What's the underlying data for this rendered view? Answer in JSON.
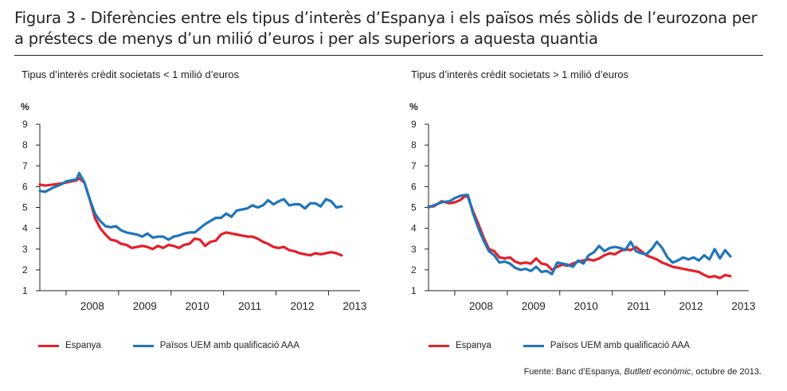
{
  "figure": {
    "title": "Figura 3 - Diferències entre els tipus d’interès d’Espanya i els països més sòlids de l’eurozona per a préstecs de menys d’un milió d’euros i per als superiors a aquesta quantia",
    "source_prefix": "Fuente: Banc d’Espanya, ",
    "source_italic": "Butlletí econòmic",
    "source_suffix": ", octubre de 2013."
  },
  "colors": {
    "spain": "#e3202a",
    "aaa": "#1f75b9",
    "axis": "#231f20"
  },
  "legend": {
    "spain": "Espanya",
    "aaa": "Països UEM amb qualificació AAA"
  },
  "chart_data": [
    {
      "type": "line",
      "title": "Tipus d’interès crèdit societats < 1 milió d’euros",
      "ylabel": "%",
      "ylim": [
        1,
        9
      ],
      "yticks": [
        1,
        2,
        3,
        4,
        5,
        6,
        7,
        8,
        9
      ],
      "xlim": [
        2007.5,
        2013.6
      ],
      "year_labels": [
        "2008",
        "2009",
        "2010",
        "2011",
        "2012",
        "2013"
      ],
      "legend_position": "bottom",
      "grid": false,
      "series": [
        {
          "name": "Espanya",
          "key": "spain",
          "x": [
            2007.5,
            2007.6,
            2007.75,
            2007.9,
            2008.0,
            2008.1,
            2008.2,
            2008.25,
            2008.35,
            2008.45,
            2008.55,
            2008.65,
            2008.75,
            2008.85,
            2008.95,
            2009.05,
            2009.15,
            2009.25,
            2009.35,
            2009.45,
            2009.55,
            2009.65,
            2009.75,
            2009.85,
            2009.95,
            2010.05,
            2010.15,
            2010.25,
            2010.35,
            2010.45,
            2010.55,
            2010.65,
            2010.75,
            2010.85,
            2010.95,
            2011.05,
            2011.15,
            2011.25,
            2011.35,
            2011.45,
            2011.55,
            2011.65,
            2011.75,
            2011.85,
            2011.95,
            2012.05,
            2012.15,
            2012.25,
            2012.35,
            2012.45,
            2012.55,
            2012.65,
            2012.75,
            2012.85,
            2012.95,
            2013.05,
            2013.15,
            2013.25
          ],
          "y": [
            6.1,
            6.05,
            6.1,
            6.15,
            6.2,
            6.25,
            6.3,
            6.4,
            6.2,
            5.4,
            4.5,
            4.0,
            3.7,
            3.45,
            3.4,
            3.25,
            3.2,
            3.05,
            3.1,
            3.15,
            3.1,
            3.0,
            3.15,
            3.05,
            3.2,
            3.15,
            3.05,
            3.2,
            3.25,
            3.5,
            3.45,
            3.15,
            3.35,
            3.4,
            3.7,
            3.8,
            3.75,
            3.7,
            3.65,
            3.6,
            3.6,
            3.5,
            3.35,
            3.25,
            3.1,
            3.05,
            3.1,
            2.95,
            2.9,
            2.8,
            2.75,
            2.7,
            2.8,
            2.75,
            2.8,
            2.85,
            2.8,
            2.7
          ]
        },
        {
          "name": "Països UEM amb qualificació AAA",
          "key": "aaa",
          "x": [
            2007.5,
            2007.6,
            2007.75,
            2007.9,
            2008.0,
            2008.1,
            2008.2,
            2008.25,
            2008.35,
            2008.45,
            2008.55,
            2008.65,
            2008.75,
            2008.85,
            2008.95,
            2009.05,
            2009.15,
            2009.25,
            2009.35,
            2009.45,
            2009.55,
            2009.65,
            2009.75,
            2009.85,
            2009.95,
            2010.05,
            2010.15,
            2010.25,
            2010.35,
            2010.45,
            2010.55,
            2010.65,
            2010.75,
            2010.85,
            2010.95,
            2011.05,
            2011.15,
            2011.25,
            2011.35,
            2011.45,
            2011.55,
            2011.65,
            2011.75,
            2011.85,
            2011.95,
            2012.05,
            2012.15,
            2012.25,
            2012.35,
            2012.45,
            2012.55,
            2012.65,
            2012.75,
            2012.85,
            2012.95,
            2013.05,
            2013.15,
            2013.25
          ],
          "y": [
            5.8,
            5.75,
            5.95,
            6.1,
            6.25,
            6.3,
            6.35,
            6.65,
            6.2,
            5.4,
            4.7,
            4.35,
            4.1,
            4.05,
            4.1,
            3.9,
            3.8,
            3.75,
            3.7,
            3.6,
            3.75,
            3.55,
            3.6,
            3.6,
            3.45,
            3.6,
            3.65,
            3.75,
            3.8,
            3.8,
            4.0,
            4.2,
            4.35,
            4.5,
            4.5,
            4.7,
            4.55,
            4.85,
            4.9,
            4.95,
            5.1,
            5.0,
            5.1,
            5.35,
            5.15,
            5.3,
            5.4,
            5.1,
            5.15,
            5.15,
            4.95,
            5.2,
            5.2,
            5.05,
            5.4,
            5.3,
            5.0,
            5.05
          ]
        }
      ]
    },
    {
      "type": "line",
      "title": "Tipus d’interès crèdit societats > 1 milió d’euros",
      "ylabel": "%",
      "ylim": [
        1,
        9
      ],
      "yticks": [
        1,
        2,
        3,
        4,
        5,
        6,
        7,
        8,
        9
      ],
      "xlim": [
        2007.5,
        2013.6
      ],
      "year_labels": [
        "2008",
        "2009",
        "2010",
        "2011",
        "2012",
        "2013"
      ],
      "legend_position": "bottom",
      "grid": false,
      "series": [
        {
          "name": "Espanya",
          "key": "spain",
          "x": [
            2007.5,
            2007.6,
            2007.75,
            2007.9,
            2008.0,
            2008.1,
            2008.2,
            2008.25,
            2008.35,
            2008.45,
            2008.55,
            2008.65,
            2008.75,
            2008.85,
            2008.95,
            2009.05,
            2009.15,
            2009.25,
            2009.35,
            2009.45,
            2009.55,
            2009.65,
            2009.75,
            2009.85,
            2009.95,
            2010.05,
            2010.15,
            2010.25,
            2010.35,
            2010.45,
            2010.55,
            2010.65,
            2010.75,
            2010.85,
            2010.95,
            2011.05,
            2011.15,
            2011.25,
            2011.35,
            2011.45,
            2011.55,
            2011.65,
            2011.75,
            2011.85,
            2011.95,
            2012.05,
            2012.15,
            2012.25,
            2012.35,
            2012.45,
            2012.55,
            2012.65,
            2012.75,
            2012.85,
            2012.95,
            2013.05,
            2013.15,
            2013.25
          ],
          "y": [
            5.05,
            5.05,
            5.3,
            5.2,
            5.25,
            5.35,
            5.55,
            5.5,
            4.8,
            4.2,
            3.55,
            3.0,
            2.9,
            2.6,
            2.55,
            2.6,
            2.4,
            2.3,
            2.35,
            2.3,
            2.55,
            2.3,
            2.25,
            2.0,
            2.15,
            2.25,
            2.2,
            2.3,
            2.4,
            2.45,
            2.5,
            2.45,
            2.55,
            2.7,
            2.8,
            2.75,
            2.9,
            3.0,
            2.95,
            3.1,
            2.9,
            2.7,
            2.6,
            2.5,
            2.35,
            2.25,
            2.15,
            2.1,
            2.05,
            2.0,
            1.95,
            1.9,
            1.75,
            1.65,
            1.7,
            1.6,
            1.75,
            1.7
          ]
        },
        {
          "name": "Països UEM amb qualificació AAA",
          "key": "aaa",
          "x": [
            2007.5,
            2007.6,
            2007.75,
            2007.9,
            2008.0,
            2008.1,
            2008.2,
            2008.25,
            2008.35,
            2008.45,
            2008.55,
            2008.65,
            2008.75,
            2008.85,
            2008.95,
            2009.05,
            2009.15,
            2009.25,
            2009.35,
            2009.45,
            2009.55,
            2009.65,
            2009.75,
            2009.85,
            2009.95,
            2010.05,
            2010.15,
            2010.25,
            2010.35,
            2010.45,
            2010.55,
            2010.65,
            2010.75,
            2010.85,
            2010.95,
            2011.05,
            2011.15,
            2011.25,
            2011.35,
            2011.45,
            2011.55,
            2011.65,
            2011.75,
            2011.85,
            2011.95,
            2012.05,
            2012.15,
            2012.25,
            2012.35,
            2012.45,
            2012.55,
            2012.65,
            2012.75,
            2012.85,
            2012.95,
            2013.05,
            2013.15,
            2013.25
          ],
          "y": [
            5.0,
            5.1,
            5.25,
            5.3,
            5.45,
            5.55,
            5.6,
            5.6,
            4.7,
            4.0,
            3.4,
            2.9,
            2.7,
            2.35,
            2.4,
            2.3,
            2.1,
            2.0,
            2.05,
            1.95,
            2.15,
            1.9,
            1.95,
            1.8,
            2.35,
            2.3,
            2.25,
            2.15,
            2.45,
            2.3,
            2.7,
            2.85,
            3.15,
            2.9,
            3.05,
            3.1,
            3.05,
            2.95,
            3.35,
            2.9,
            2.8,
            2.75,
            3.0,
            3.35,
            3.05,
            2.6,
            2.35,
            2.45,
            2.6,
            2.5,
            2.6,
            2.45,
            2.7,
            2.5,
            3.0,
            2.55,
            2.95,
            2.65
          ]
        }
      ]
    }
  ]
}
